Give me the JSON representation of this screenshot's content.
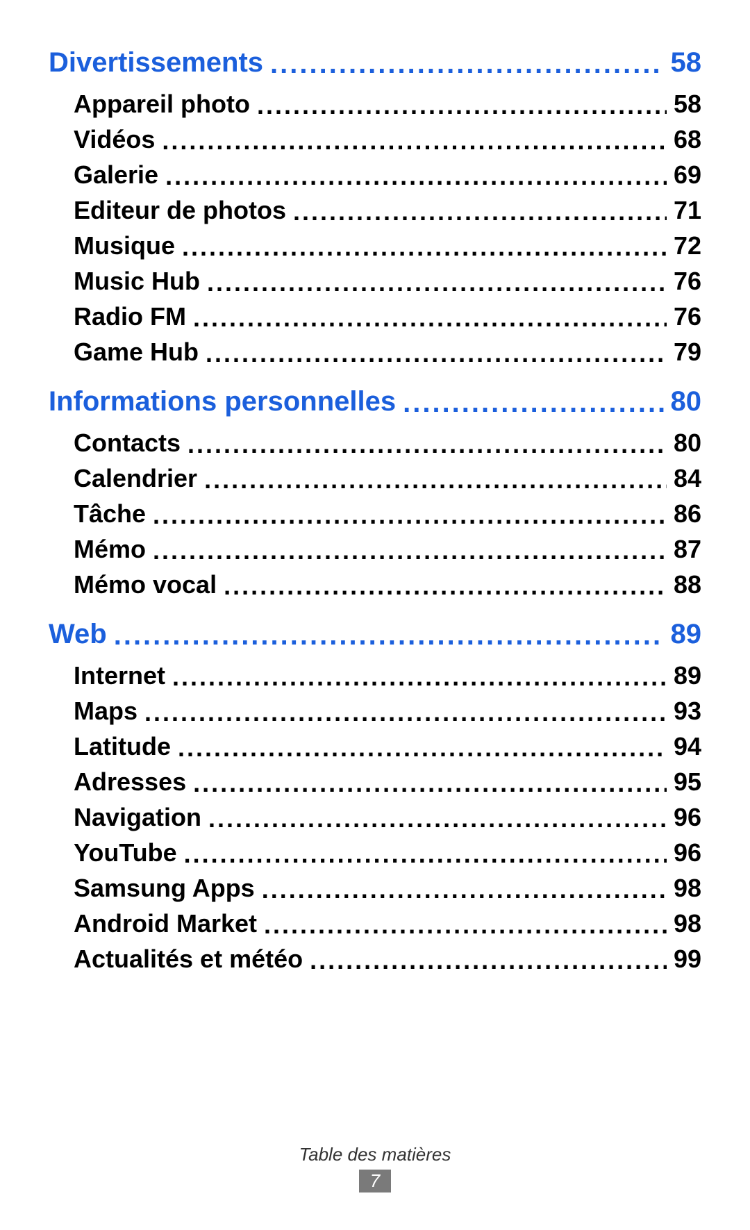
{
  "footer": {
    "title": "Table des matières",
    "page_number": "7"
  },
  "sections": [
    {
      "heading": "Divertissements",
      "page": "58",
      "items": [
        {
          "label": "Appareil photo",
          "page": "58"
        },
        {
          "label": "Vidéos",
          "page": "68"
        },
        {
          "label": "Galerie",
          "page": "69"
        },
        {
          "label": "Editeur de photos",
          "page": "71"
        },
        {
          "label": "Musique",
          "page": "72"
        },
        {
          "label": "Music Hub",
          "page": "76"
        },
        {
          "label": "Radio FM",
          "page": "76"
        },
        {
          "label": "Game Hub",
          "page": "79"
        }
      ]
    },
    {
      "heading": "Informations personnelles",
      "page": "80",
      "items": [
        {
          "label": "Contacts",
          "page": "80"
        },
        {
          "label": "Calendrier",
          "page": "84"
        },
        {
          "label": "Tâche",
          "page": "86"
        },
        {
          "label": "Mémo",
          "page": "87"
        },
        {
          "label": "Mémo vocal",
          "page": "88"
        }
      ]
    },
    {
      "heading": "Web",
      "page": "89",
      "items": [
        {
          "label": "Internet",
          "page": "89"
        },
        {
          "label": "Maps",
          "page": "93"
        },
        {
          "label": "Latitude",
          "page": "94"
        },
        {
          "label": "Adresses",
          "page": "95"
        },
        {
          "label": "Navigation",
          "page": "96"
        },
        {
          "label": "YouTube",
          "page": "96"
        },
        {
          "label": "Samsung Apps",
          "page": "98"
        },
        {
          "label": "Android Market",
          "page": "98"
        },
        {
          "label": "Actualités et météo",
          "page": "99"
        }
      ]
    }
  ],
  "colors": {
    "heading": "#1b5fdc",
    "item": "#000000",
    "background": "#ffffff",
    "badge_bg": "#7a7a7a",
    "badge_fg": "#ffffff"
  },
  "typography": {
    "heading_fontsize": 40,
    "item_fontsize": 36,
    "footer_fontsize": 26,
    "heading_weight": 700,
    "item_weight": 700
  }
}
